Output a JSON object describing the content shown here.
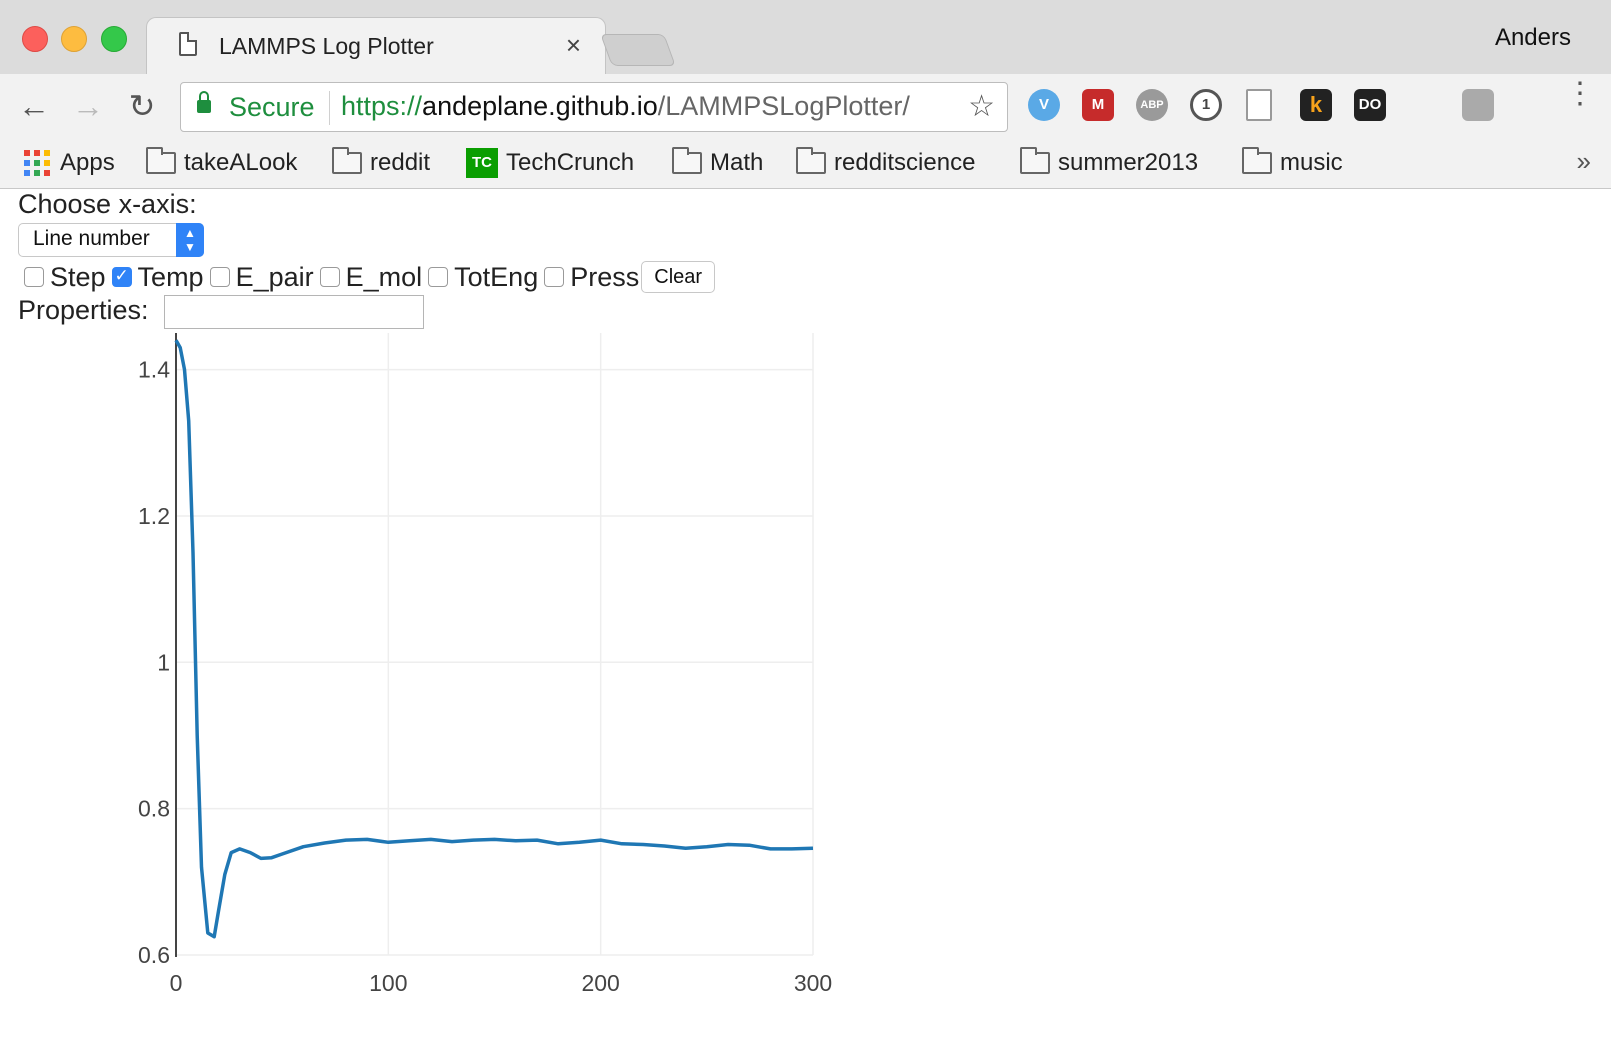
{
  "window": {
    "tab_title": "LAMMPS Log Plotter",
    "tab_close": "×",
    "profile_name": "Anders"
  },
  "toolbar": {
    "back_icon": "←",
    "forward_icon": "→",
    "reload_icon": "↻",
    "secure_label": "Secure",
    "url_scheme": "https://",
    "url_host": "andeplane.github.io",
    "url_path": "/LAMMPSLogPlotter/",
    "star_icon": "☆",
    "extensions": [
      "V",
      "M",
      "ABP",
      "1",
      "",
      "k",
      "DO",
      "",
      ""
    ],
    "menu_icon": "⋮"
  },
  "bookmarks": {
    "items": [
      "Apps",
      "takeALook",
      "reddit",
      "TechCrunch",
      "Math",
      "redditscience",
      "summer2013",
      "music"
    ],
    "tc_logo_text": "TC",
    "more_icon": "»"
  },
  "page": {
    "x_axis_label": "Choose x-axis:",
    "x_axis_selected": "Line number",
    "checkboxes": [
      {
        "label": "Step",
        "checked": false
      },
      {
        "label": "Temp",
        "checked": true
      },
      {
        "label": "E_pair",
        "checked": false
      },
      {
        "label": "E_mol",
        "checked": false
      },
      {
        "label": "TotEng",
        "checked": false
      },
      {
        "label": "Press",
        "checked": false
      }
    ],
    "clear_label": "Clear",
    "properties_label": "Properties:",
    "properties_value": ""
  },
  "chart_data": {
    "type": "line",
    "title": "",
    "xlabel": "",
    "ylabel": "",
    "xlim": [
      0,
      300
    ],
    "ylim": [
      0.6,
      1.45
    ],
    "xticks": [
      0,
      100,
      200,
      300
    ],
    "xtick_labels": [
      "0",
      "100",
      "200",
      "300"
    ],
    "yticks": [
      0.6,
      0.8,
      1.0,
      1.2,
      1.4
    ],
    "ytick_labels": [
      "0.6",
      "0.8",
      "1",
      "1.2",
      "1.4"
    ],
    "grid": true,
    "line_color": "#1f77b4",
    "series": [
      {
        "x": [
          0,
          2,
          4,
          6,
          8,
          10,
          12,
          15,
          18,
          20,
          23,
          26,
          30,
          35,
          40,
          45,
          50,
          60,
          70,
          80,
          90,
          100,
          110,
          120,
          130,
          140,
          150,
          160,
          170,
          180,
          190,
          200,
          210,
          220,
          230,
          240,
          250,
          260,
          270,
          280,
          290,
          300
        ],
        "y": [
          1.44,
          1.43,
          1.4,
          1.33,
          1.15,
          0.9,
          0.72,
          0.63,
          0.625,
          0.66,
          0.71,
          0.74,
          0.745,
          0.74,
          0.732,
          0.733,
          0.738,
          0.748,
          0.753,
          0.757,
          0.758,
          0.754,
          0.756,
          0.758,
          0.755,
          0.757,
          0.758,
          0.756,
          0.757,
          0.752,
          0.754,
          0.757,
          0.752,
          0.751,
          0.749,
          0.746,
          0.748,
          0.751,
          0.75,
          0.745,
          0.745,
          0.746
        ]
      }
    ]
  }
}
